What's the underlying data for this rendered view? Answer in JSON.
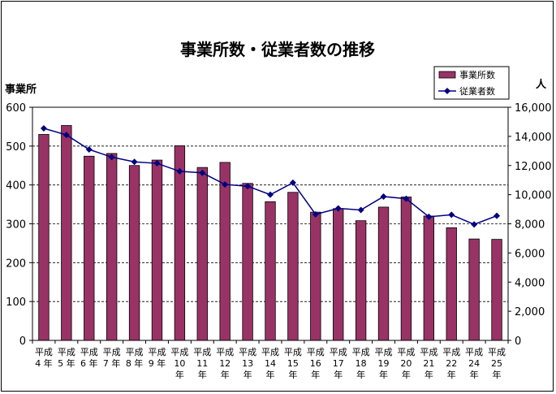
{
  "chart_data": {
    "type": "bar",
    "title": "事業所数・従業者数の推移",
    "ylabel": "事業所",
    "y2label": "人",
    "categories": [
      [
        "平成",
        "4 年"
      ],
      [
        "平成",
        "5 年"
      ],
      [
        "平成",
        "6 年"
      ],
      [
        "平成",
        "7 年"
      ],
      [
        "平成",
        "8 年"
      ],
      [
        "平成",
        "9 年"
      ],
      [
        "平成",
        "10",
        "年"
      ],
      [
        "平成",
        "11",
        "年"
      ],
      [
        "平成",
        "12",
        "年"
      ],
      [
        "平成",
        "13",
        "年"
      ],
      [
        "平成",
        "14",
        "年"
      ],
      [
        "平成",
        "15",
        "年"
      ],
      [
        "平成",
        "16",
        "年"
      ],
      [
        "平成",
        "17",
        "年"
      ],
      [
        "平成",
        "18",
        "年"
      ],
      [
        "平成",
        "19",
        "年"
      ],
      [
        "平成",
        "20",
        "年"
      ],
      [
        "平成",
        "21",
        "年"
      ],
      [
        "平成",
        "22",
        "年"
      ],
      [
        "平成",
        "24",
        "年"
      ],
      [
        "平成",
        "25",
        "年"
      ]
    ],
    "series": [
      {
        "name": "事業所数",
        "type": "bar",
        "axis": "left",
        "color": "#993366",
        "values": [
          530,
          553,
          474,
          481,
          450,
          464,
          501,
          445,
          458,
          404,
          357,
          381,
          330,
          339,
          308,
          343,
          369,
          320,
          290,
          261,
          260
        ]
      },
      {
        "name": "従業者数",
        "type": "line",
        "axis": "right",
        "color": "#000080",
        "values": [
          14550,
          14100,
          13100,
          12580,
          12250,
          12150,
          11600,
          11500,
          10700,
          10580,
          10000,
          10820,
          8650,
          9060,
          8950,
          9870,
          9720,
          8480,
          8620,
          7960,
          8550
        ]
      }
    ],
    "ylim": [
      0,
      600
    ],
    "y2lim": [
      0,
      16000
    ],
    "yticks": [
      "0",
      "100",
      "200",
      "300",
      "400",
      "500",
      "600"
    ],
    "y2ticks": [
      "0",
      "2,000",
      "4,000",
      "6,000",
      "8,000",
      "10,000",
      "12,000",
      "14,000",
      "16,000"
    ],
    "grid": "horizontal-dashed",
    "legend": "top-right"
  }
}
